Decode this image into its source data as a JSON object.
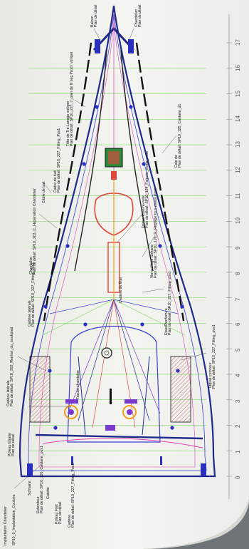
{
  "colors": {
    "paper": "#f3f3ef",
    "hull_outline": "#1d2a8c",
    "deck_lines": "#3a3fd0",
    "stations": "#7ee36a",
    "magenta": "#e33fb4",
    "red": "#e0463a",
    "orange": "#f0a020",
    "purple": "#7a3ad0",
    "hatching": "#d06060"
  },
  "scale": {
    "ticks": [
      "0",
      "1",
      "2",
      "3",
      "4",
      "5",
      "6",
      "7",
      "8",
      "9",
      "10",
      "11",
      "12",
      "13",
      "14",
      "15",
      "16",
      "17"
    ]
  },
  "callouts": {
    "bow_top_left": [
      "Balcon",
      "Plan de détail"
    ],
    "bow_top_right": [
      "Chandelier",
      "Plan de détail"
    ],
    "left_top": [
      "Tête de Tre Lanage voiliger",
      "Plan de détail: SP10_227_7_plan de fil seg Prod / voiliger"
    ],
    "left_mid_a": [
      "Cadre de bati",
      "Plan de détail: SP10_227_Fitting_Pos1"
    ],
    "left_mid_b": [
      "Câble de bati",
      "Plan de détail: SP10_203_C_Hypenation Chandelier"
    ],
    "left_mid_c": [
      "Chandelier",
      "Plan de détail: SP10_203_C_Hypenation Chandelier"
    ],
    "left_low_a": [
      "Cadène latérale",
      "Plan de détail: SP10_227_Fitting_Pos1"
    ],
    "left_low_b": [
      "Cadène latérale",
      "Plan de détail: SP10_202_Renfort_du_bout/pied"
    ],
    "left_low_c": [
      "Poteau Etraite",
      "Plan de détail"
    ],
    "right_top": [
      "Cale de",
      "Plan de détail: SP10_125_Castane_d1"
    ],
    "right_mid_a": [
      "Drisse Tope-ra-voile",
      "Plan de détail: SP10_124_Faipote_mode_voile"
    ],
    "right_mid_b": [
      "Verrouillage Safrane",
      "Plan de détail: SP10_126_R_Reglage tous pielos Pont"
    ],
    "right_mid_c": [
      "Etaie/Renforture",
      "Plan de détail: SP10_227_Fitting_pos1"
    ],
    "right_low_a": [
      "Taquet coinceur",
      "Plan de détail: SP10_227_Fitting_pos1"
    ],
    "center_a": [
      "Cadène de Étai"
    ],
    "center_b": [
      "Taquet chandelier"
    ],
    "stern_a": [
      "Sofmane"
    ],
    "stern_b": [
      "Extendeur",
      "Plan de détail: SP10_126_Castane_pos1"
    ],
    "stern_c": [
      "Galette"
    ],
    "stern_d": [
      "Poteau Filet",
      "Plan de détail"
    ],
    "stern_e": [
      "Cadène",
      "Plan de détail: SP10_227_Fitting_Pos1"
    ],
    "bottom_a": [
      "SP10_0_Implantation_Couloirs"
    ],
    "bottom_b": [
      "Implantation Chandelier"
    ]
  }
}
